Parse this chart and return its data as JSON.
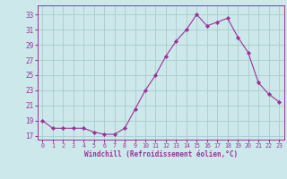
{
  "x": [
    0,
    1,
    2,
    3,
    4,
    5,
    6,
    7,
    8,
    9,
    10,
    11,
    12,
    13,
    14,
    15,
    16,
    17,
    18,
    19,
    20,
    21,
    22,
    23
  ],
  "y": [
    19,
    18,
    18,
    18,
    18,
    17.5,
    17.2,
    17.2,
    18,
    20.5,
    23,
    25,
    27.5,
    29.5,
    31,
    33,
    31.5,
    32,
    32.5,
    30,
    28,
    24,
    22.5,
    21.5
  ],
  "line_color": "#993399",
  "marker_color": "#993399",
  "bg_color": "#cce8ea",
  "grid_color": "#aacccc",
  "xlabel": "Windchill (Refroidissement éolien,°C)",
  "xlabel_color": "#993399",
  "tick_color": "#993399",
  "xlim": [
    -0.5,
    23.5
  ],
  "ylim": [
    16.5,
    34.2
  ],
  "yticks": [
    17,
    19,
    21,
    23,
    25,
    27,
    29,
    31,
    33
  ],
  "xticks": [
    0,
    1,
    2,
    3,
    4,
    5,
    6,
    7,
    8,
    9,
    10,
    11,
    12,
    13,
    14,
    15,
    16,
    17,
    18,
    19,
    20,
    21,
    22,
    23
  ]
}
